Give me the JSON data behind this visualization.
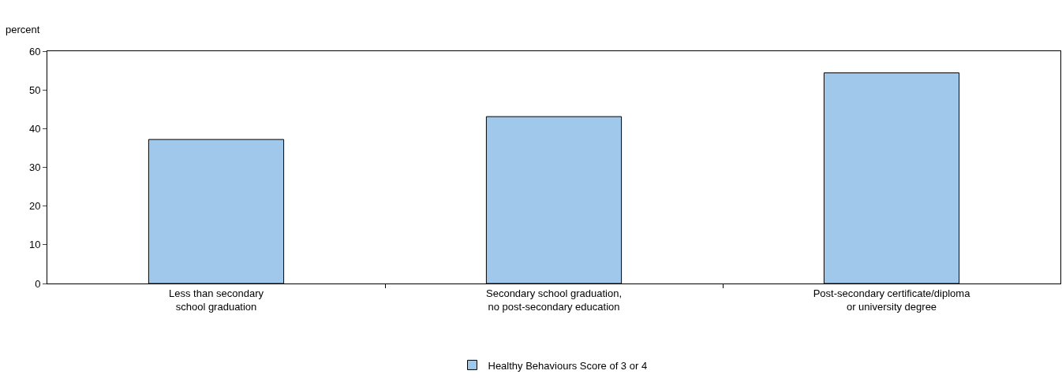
{
  "chart_data": {
    "type": "bar",
    "ylabel": "percent",
    "categories": [
      "Less than secondary school graduation",
      "Secondary school graduation, no post-secondary education",
      "Post-secondary certificate/diploma or university degree"
    ],
    "series": [
      {
        "name": "Healthy Behaviours Score of 3 or 4",
        "color": "#a0c8ea",
        "values": [
          37.2,
          43.1,
          54.4
        ]
      }
    ],
    "ylim": [
      0,
      60
    ],
    "yticks": [
      0,
      10,
      20,
      30,
      40,
      50,
      60
    ],
    "grid": false,
    "legend": "bottom"
  }
}
